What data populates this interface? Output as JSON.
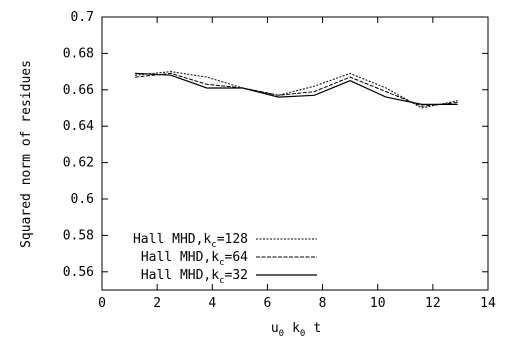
{
  "chart_data": {
    "type": "line",
    "title": "",
    "xlabel": "u0 k0 t",
    "xlabel_parts": {
      "u": "u",
      "u_sub": "0",
      "k": "k",
      "k_sub": "0",
      "t": "t"
    },
    "ylabel": "Squared norm of residues",
    "xlim": [
      0,
      14
    ],
    "ylim": [
      0.55,
      0.7
    ],
    "xticks": [
      "0",
      "2",
      "4",
      "6",
      "8",
      "10",
      "12",
      "14"
    ],
    "yticks": [
      "0.56",
      "0.58",
      "0.6",
      "0.62",
      "0.64",
      "0.66",
      "0.68",
      "0.7"
    ],
    "grid": false,
    "legend_position": "bottom-left",
    "series": [
      {
        "name": "Hall MHD,k_c=128",
        "legend_prefix": "Hall MHD,k",
        "legend_sub": "c",
        "legend_suffix": "=128",
        "style": "dotted",
        "x": [
          1.2,
          2.5,
          3.8,
          5.1,
          6.4,
          7.7,
          9.0,
          10.3,
          11.6,
          12.9
        ],
        "y": [
          0.668,
          0.67,
          0.667,
          0.661,
          0.657,
          0.662,
          0.669,
          0.661,
          0.65,
          0.654
        ]
      },
      {
        "name": "Hall MHD,k_c=64",
        "legend_prefix": "Hall MHD,k",
        "legend_sub": "c",
        "legend_suffix": "=64",
        "style": "dashed",
        "x": [
          1.2,
          2.5,
          3.8,
          5.1,
          6.4,
          7.7,
          9.0,
          10.3,
          11.6,
          12.9
        ],
        "y": [
          0.667,
          0.669,
          0.663,
          0.661,
          0.657,
          0.659,
          0.667,
          0.659,
          0.651,
          0.653
        ]
      },
      {
        "name": "Hall MHD,k_c=32",
        "legend_prefix": "Hall MHD,k",
        "legend_sub": "c",
        "legend_suffix": "=32",
        "style": "solid",
        "x": [
          1.2,
          2.5,
          3.8,
          5.1,
          6.4,
          7.7,
          9.0,
          10.3,
          11.6,
          12.9
        ],
        "y": [
          0.669,
          0.668,
          0.661,
          0.661,
          0.656,
          0.657,
          0.665,
          0.656,
          0.652,
          0.652
        ]
      }
    ]
  }
}
